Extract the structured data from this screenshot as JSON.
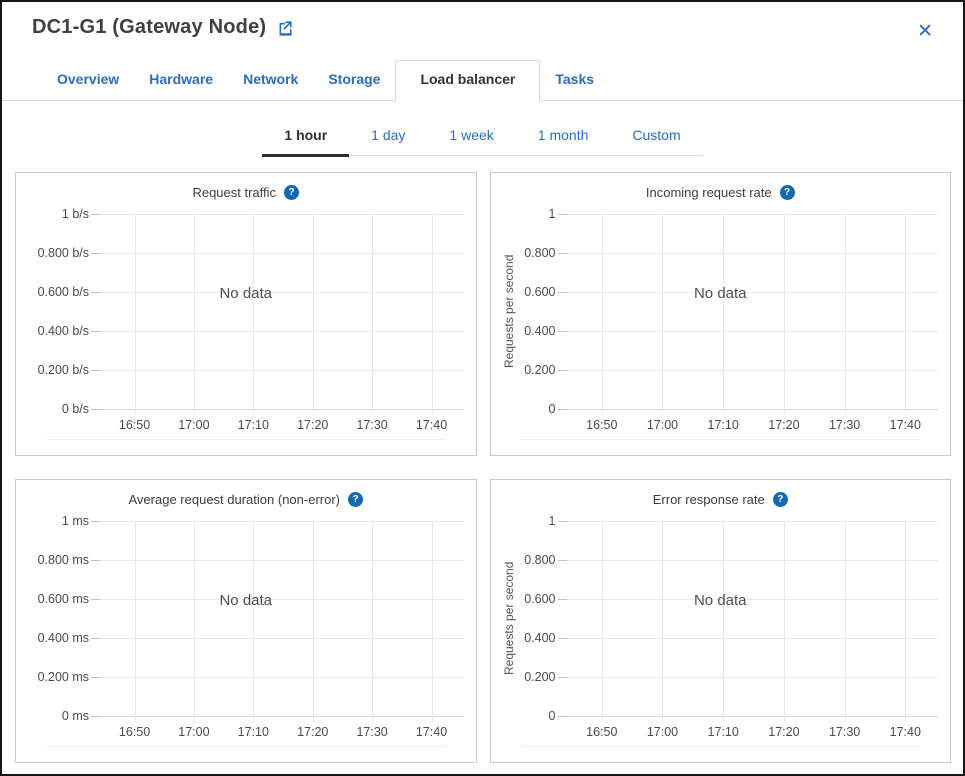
{
  "window": {
    "title": "DC1-G1 (Gateway Node)",
    "close_glyph": "✕"
  },
  "icons": {
    "external_link": "open-in-new",
    "close": "close",
    "help_glyph": "?"
  },
  "colors": {
    "accent_blue": "#2a6cc4",
    "help_icon_blue": "#1467b3",
    "active_tab_text": "#2f2f2f"
  },
  "tabs": [
    {
      "label": "Overview",
      "active": false
    },
    {
      "label": "Hardware",
      "active": false
    },
    {
      "label": "Network",
      "active": false
    },
    {
      "label": "Storage",
      "active": false
    },
    {
      "label": "Load balancer",
      "active": true
    },
    {
      "label": "Tasks",
      "active": false
    }
  ],
  "time_range": {
    "options": [
      {
        "label": "1 hour",
        "active": true
      },
      {
        "label": "1 day",
        "active": false
      },
      {
        "label": "1 week",
        "active": false
      },
      {
        "label": "1 month",
        "active": false
      },
      {
        "label": "Custom",
        "active": false
      }
    ]
  },
  "chart_data": [
    {
      "type": "line",
      "title": "Request traffic",
      "ylabel": "",
      "y_tick_labels": [
        "1 b/s",
        "0.800 b/s",
        "0.600 b/s",
        "0.400 b/s",
        "0.200 b/s",
        "0 b/s"
      ],
      "x_tick_labels": [
        "16:50",
        "17:00",
        "17:10",
        "17:20",
        "17:30",
        "17:40"
      ],
      "ylim": [
        0,
        1
      ],
      "series": [],
      "no_data_text": "No data",
      "grid": true,
      "legend": "none"
    },
    {
      "type": "line",
      "title": "Incoming request rate",
      "ylabel": "Requests per second",
      "y_tick_labels": [
        "1",
        "0.800",
        "0.600",
        "0.400",
        "0.200",
        "0"
      ],
      "x_tick_labels": [
        "16:50",
        "17:00",
        "17:10",
        "17:20",
        "17:30",
        "17:40"
      ],
      "ylim": [
        0,
        1
      ],
      "series": [],
      "no_data_text": "No data",
      "grid": true,
      "legend": "none"
    },
    {
      "type": "line",
      "title": "Average request duration (non-error)",
      "ylabel": "",
      "y_tick_labels": [
        "1 ms",
        "0.800 ms",
        "0.600 ms",
        "0.400 ms",
        "0.200 ms",
        "0 ms"
      ],
      "x_tick_labels": [
        "16:50",
        "17:00",
        "17:10",
        "17:20",
        "17:30",
        "17:40"
      ],
      "ylim": [
        0,
        1
      ],
      "series": [],
      "no_data_text": "No data",
      "grid": true,
      "legend": "none"
    },
    {
      "type": "line",
      "title": "Error response rate",
      "ylabel": "Requests per second",
      "y_tick_labels": [
        "1",
        "0.800",
        "0.600",
        "0.400",
        "0.200",
        "0"
      ],
      "x_tick_labels": [
        "16:50",
        "17:00",
        "17:10",
        "17:20",
        "17:30",
        "17:40"
      ],
      "ylim": [
        0,
        1
      ],
      "series": [],
      "no_data_text": "No data",
      "grid": true,
      "legend": "none"
    }
  ]
}
